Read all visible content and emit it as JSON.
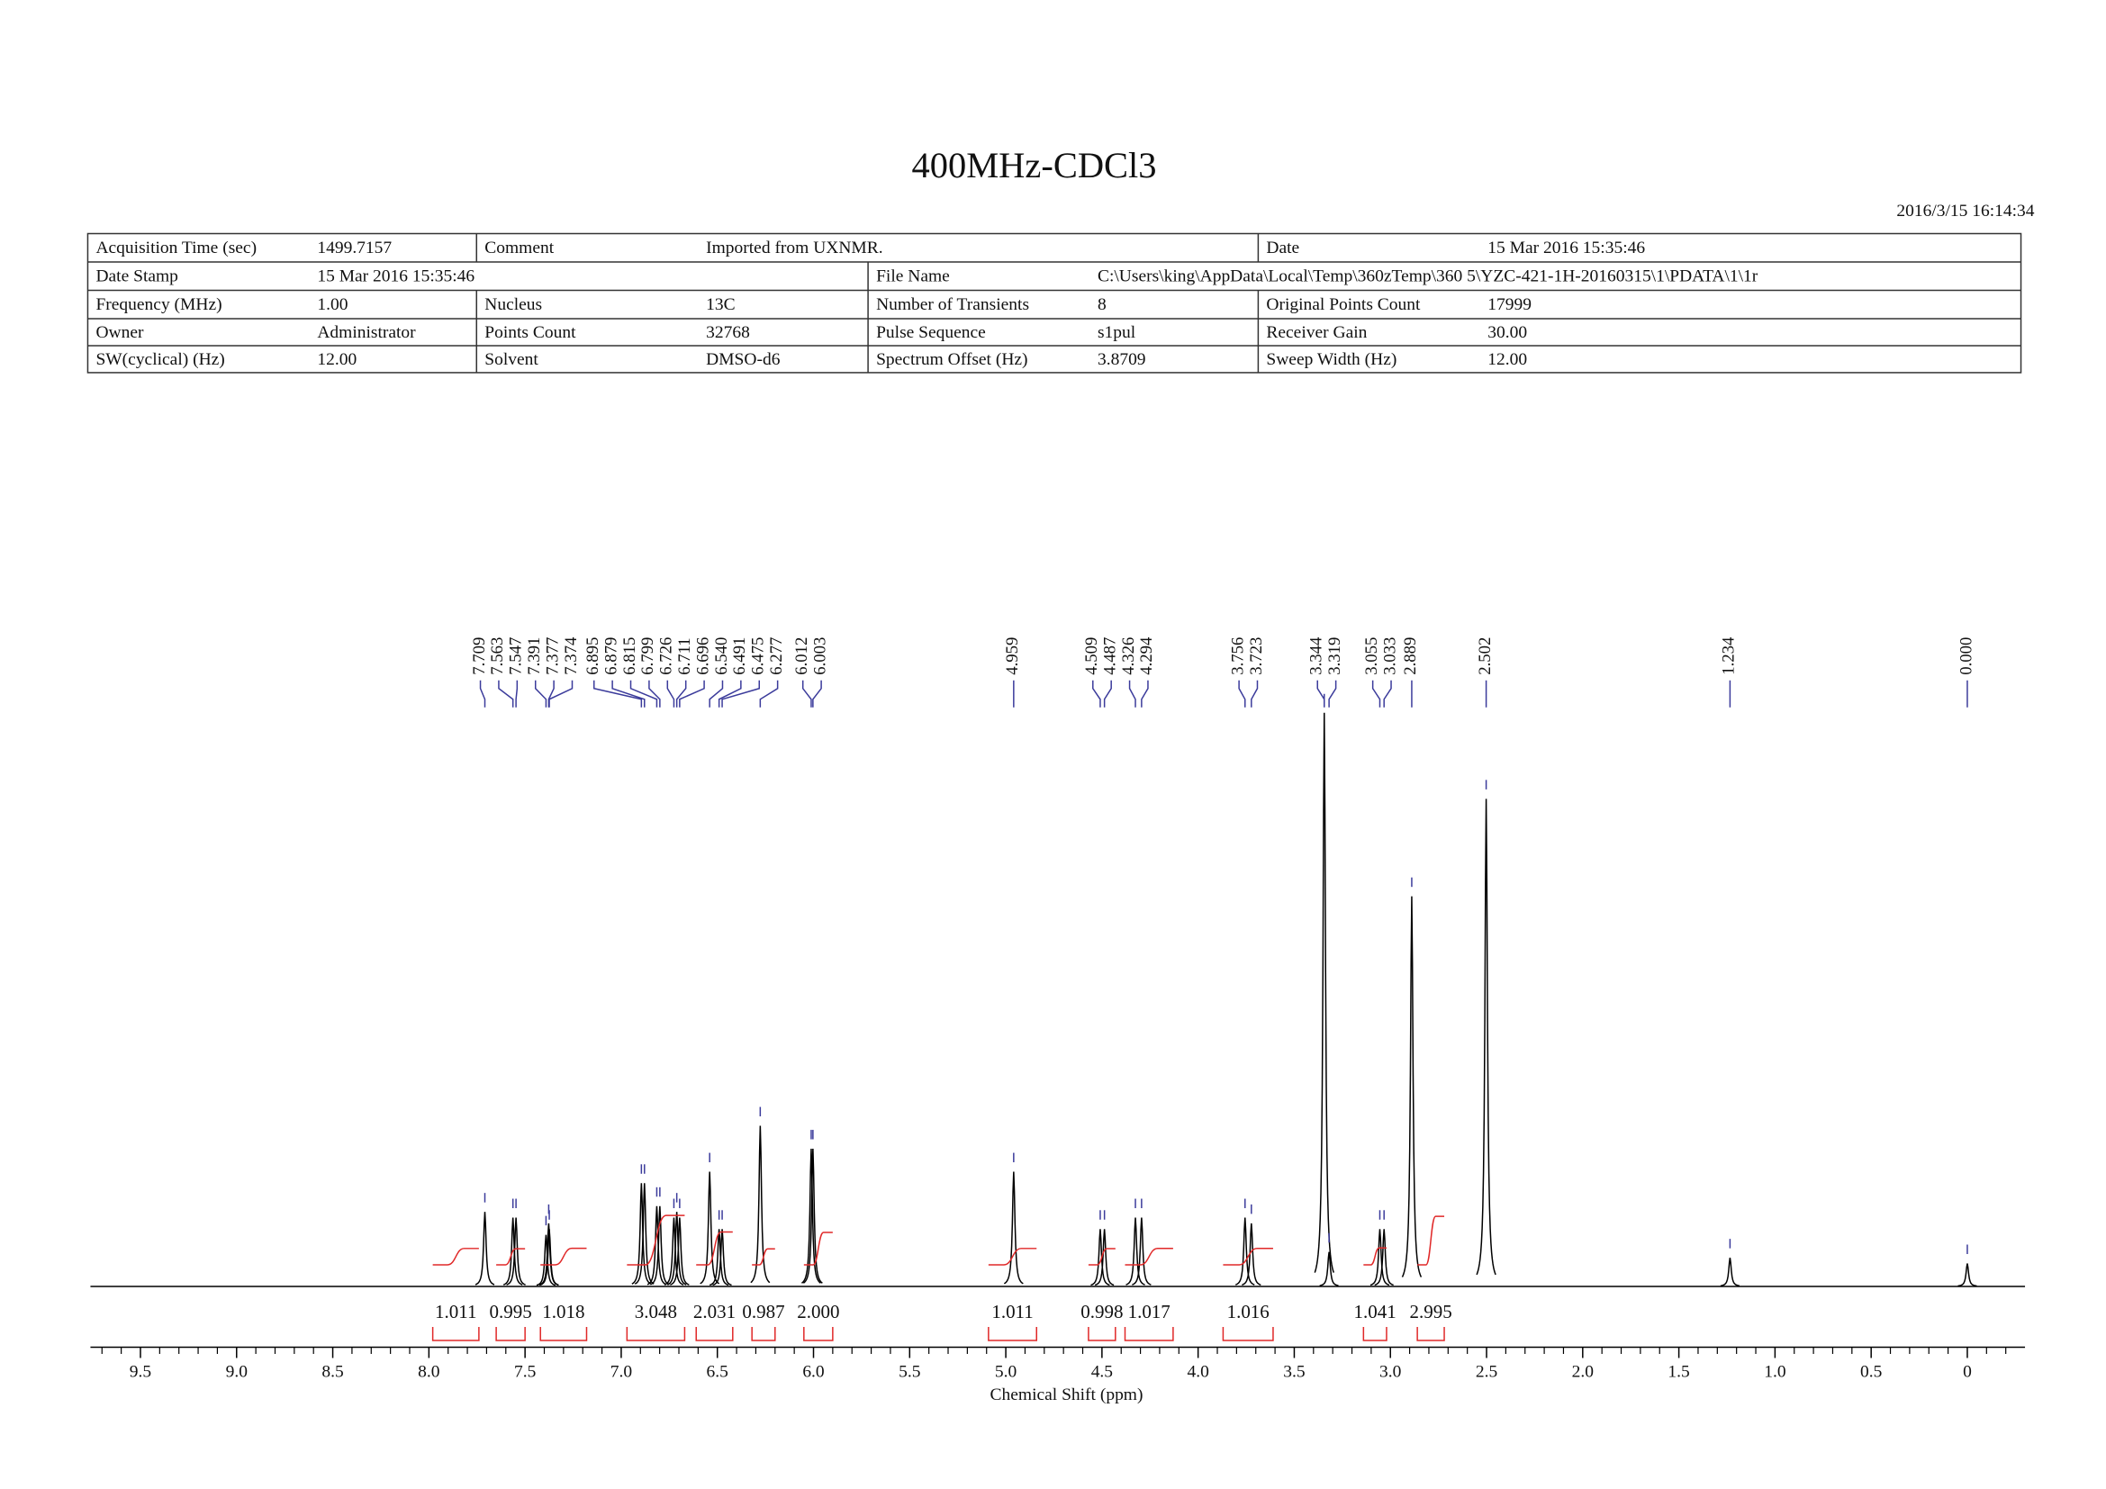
{
  "header": {
    "title": "400MHz-CDCl3",
    "timestamp": "2016/3/15 16:14:34"
  },
  "parameters": {
    "rows": [
      [
        {
          "label": "Acquisition Time (sec)",
          "value": "1499.7157"
        },
        {
          "label": "Comment",
          "value": "Imported from UXNMR."
        },
        {
          "label": "Date",
          "value": "15 Mar 2016 15:35:46"
        }
      ],
      [
        {
          "label": "Date Stamp",
          "value": "15 Mar 2016 15:35:46"
        },
        {
          "label": "File Name",
          "value": "C:\\Users\\king\\AppData\\Local\\Temp\\360zTemp\\360 5\\YZC-421-1H-20160315\\1\\PDATA\\1\\1r"
        }
      ],
      [
        {
          "label": "Frequency (MHz)",
          "value": "1.00"
        },
        {
          "label": "Nucleus",
          "value": "13C"
        },
        {
          "label": "Number of Transients",
          "value": "8"
        },
        {
          "label": "Original Points Count",
          "value": "17999"
        }
      ],
      [
        {
          "label": "Owner",
          "value": "Administrator"
        },
        {
          "label": "Points Count",
          "value": "32768"
        },
        {
          "label": "Pulse Sequence",
          "value": "s1pul"
        },
        {
          "label": "Receiver Gain",
          "value": "30.00"
        }
      ],
      [
        {
          "label": "SW(cyclical) (Hz)",
          "value": "12.00"
        },
        {
          "label": "Solvent",
          "value": "DMSO-d6"
        },
        {
          "label": "Spectrum Offset (Hz)",
          "value": "3.8709"
        },
        {
          "label": "Sweep Width (Hz)",
          "value": "12.00"
        }
      ]
    ]
  },
  "chart_data": {
    "type": "nmr",
    "xlabel": "Chemical Shift (ppm)",
    "xlim": [
      9.76,
      -0.3
    ],
    "xticks": [
      9.5,
      {
        "value": 9,
        "label": "9.0"
      },
      8.5,
      {
        "value": 8,
        "label": "8.0"
      },
      7.5,
      {
        "value": 7,
        "label": "7.0"
      },
      6.5,
      {
        "value": 6,
        "label": "6.0"
      },
      5.5,
      {
        "value": 5,
        "label": "5.0"
      },
      4.5,
      {
        "value": 4,
        "label": "4.0"
      },
      3.5,
      {
        "value": 3,
        "label": "3.0"
      },
      2.5,
      {
        "value": 2,
        "label": "2.0"
      },
      1.5,
      {
        "value": 1,
        "label": "1.0"
      },
      0.5,
      0
    ],
    "xminorticks": [
      9.7,
      9.6,
      9.4,
      9.3,
      9.2,
      9.1,
      8.9,
      8.8,
      8.7,
      8.6,
      8.4,
      8.3,
      8.2,
      8.1,
      7.9,
      7.8,
      7.7,
      7.6,
      7.4,
      7.3,
      7.2,
      7.1,
      6.9,
      6.8,
      6.7,
      6.6,
      6.4,
      6.3,
      6.2,
      6.1,
      5.9,
      5.8,
      5.7,
      5.6,
      5.4,
      5.3,
      5.2,
      5.1,
      4.9,
      4.8,
      4.7,
      4.6,
      4.4,
      4.3,
      4.2,
      4.1,
      3.9,
      3.8,
      3.7,
      3.6,
      3.4,
      3.3,
      3.2,
      3.1,
      2.9,
      2.8,
      2.7,
      2.6,
      2.4,
      2.3,
      2.2,
      2.1,
      1.9,
      1.8,
      1.7,
      1.6,
      1.4,
      1.3,
      1.2,
      1.1,
      0.9,
      0.8,
      0.7,
      0.6,
      0.4,
      0.3,
      0.2,
      0.1,
      -0.1,
      -0.2
    ],
    "peaks": {
      "x": [
        7.709,
        7.563,
        7.547,
        7.391,
        7.377,
        7.374,
        6.895,
        6.879,
        6.815,
        6.799,
        6.726,
        6.711,
        6.696,
        6.54,
        6.491,
        6.475,
        6.277,
        6.012,
        6.003,
        4.959,
        4.509,
        4.487,
        4.326,
        4.294,
        3.756,
        3.723,
        3.344,
        3.319,
        3.055,
        3.033,
        2.889,
        2.502,
        1.234,
        0
      ],
      "values": [
        13,
        12,
        12,
        9,
        11,
        10,
        18,
        18,
        14,
        14,
        12,
        13,
        12,
        20,
        10,
        10,
        28,
        24,
        24,
        20,
        10,
        10,
        12,
        12,
        12,
        11,
        100,
        6,
        10,
        10,
        68,
        85,
        5,
        4
      ],
      "value_labels": [
        "7.709",
        "7.563",
        "7.547",
        "7.391",
        "7.377",
        "7.374",
        "6.895",
        "6.879",
        "6.815",
        "6.799",
        "6.726",
        "6.711",
        "6.696",
        "6.540",
        "6.491",
        "6.475",
        "6.277",
        "6.012",
        "6.003",
        "4.959",
        "4.509",
        "4.487",
        "4.326",
        "4.294",
        "3.756",
        "3.723",
        "3.344",
        "3.319",
        "3.055",
        "3.033",
        "2.889",
        "2.502",
        "1.234",
        "0.000"
      ]
    },
    "integrals": {
      "from": [
        7.98,
        7.65,
        7.42,
        6.97,
        6.61,
        6.32,
        6.05,
        5.09,
        4.57,
        4.38,
        3.87,
        3.14,
        2.86
      ],
      "to": [
        7.74,
        7.5,
        7.18,
        6.67,
        6.42,
        6.2,
        5.9,
        4.84,
        4.43,
        4.13,
        3.61,
        3.02,
        2.72
      ],
      "values": [
        1.011,
        0.995,
        1.018,
        3.048,
        2.031,
        0.987,
        2,
        1.011,
        0.998,
        1.017,
        1.016,
        1.041,
        2.995
      ],
      "value_labels": [
        "1.011",
        "0.995",
        "1.018",
        "3.048",
        "2.031",
        "0.987",
        "2.000",
        "1.011",
        "0.998",
        "1.017",
        "1.016",
        "1.041",
        "2.995"
      ]
    },
    "spectrum_color": "#000000",
    "peak_label_color": "#3b3b9b",
    "integral_color": "#e02828"
  }
}
